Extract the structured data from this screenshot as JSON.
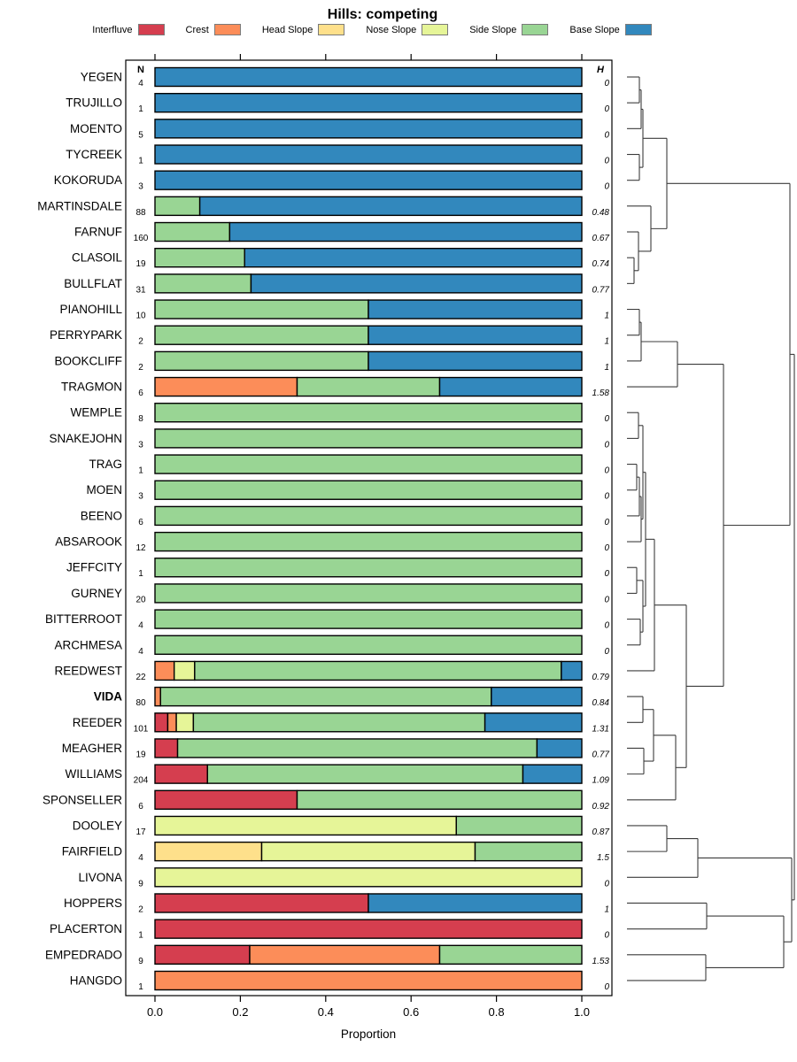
{
  "title": "Hills: competing",
  "legend": {
    "items": [
      {
        "label": "Interfluve",
        "class": "interfluve",
        "color": "#D53E4F"
      },
      {
        "label": "Crest",
        "class": "crest",
        "color": "#FC8D59"
      },
      {
        "label": "Head Slope",
        "class": "head",
        "color": "#FEE08B"
      },
      {
        "label": "Nose Slope",
        "class": "nose",
        "color": "#E6F598"
      },
      {
        "label": "Side Slope",
        "class": "side",
        "color": "#99D594"
      },
      {
        "label": "Base Slope",
        "class": "base",
        "color": "#3288BD"
      }
    ]
  },
  "columns": {
    "n_header": "N",
    "h_header": "H"
  },
  "axis": {
    "label": "Proportion",
    "ticks": [
      {
        "v": 0.0,
        "label": "0.0"
      },
      {
        "v": 0.2,
        "label": "0.2"
      },
      {
        "v": 0.4,
        "label": "0.4"
      },
      {
        "v": 0.6,
        "label": "0.6"
      },
      {
        "v": 0.8,
        "label": "0.8"
      },
      {
        "v": 1.0,
        "label": "1.0"
      }
    ],
    "xlim": [
      0,
      1
    ]
  },
  "chart_data": {
    "type": "bar",
    "orientation": "horizontal-stacked",
    "title": "Hills: competing",
    "xlabel": "Proportion",
    "classes": [
      "interfluve",
      "crest",
      "head",
      "nose",
      "side",
      "base"
    ],
    "colors": {
      "interfluve": "#D53E4F",
      "crest": "#FC8D59",
      "head": "#FEE08B",
      "nose": "#E6F598",
      "side": "#99D594",
      "base": "#3288BD"
    },
    "rows": [
      {
        "name": "YEGEN",
        "n": "4",
        "h": "0",
        "segments": [
          [
            "base",
            1.0
          ]
        ]
      },
      {
        "name": "TRUJILLO",
        "n": "1",
        "h": "0",
        "segments": [
          [
            "base",
            1.0
          ]
        ]
      },
      {
        "name": "MOENTO",
        "n": "5",
        "h": "0",
        "segments": [
          [
            "base",
            1.0
          ]
        ]
      },
      {
        "name": "TYCREEK",
        "n": "1",
        "h": "0",
        "segments": [
          [
            "base",
            1.0
          ]
        ]
      },
      {
        "name": "KOKORUDA",
        "n": "3",
        "h": "0",
        "segments": [
          [
            "base",
            1.0
          ]
        ]
      },
      {
        "name": "MARTINSDALE",
        "n": "88",
        "h": "0.48",
        "segments": [
          [
            "side",
            0.105
          ],
          [
            "base",
            0.895
          ]
        ]
      },
      {
        "name": "FARNUF",
        "n": "160",
        "h": "0.67",
        "segments": [
          [
            "side",
            0.175
          ],
          [
            "base",
            0.825
          ]
        ]
      },
      {
        "name": "CLASOIL",
        "n": "19",
        "h": "0.74",
        "segments": [
          [
            "side",
            0.21
          ],
          [
            "base",
            0.79
          ]
        ]
      },
      {
        "name": "BULLFLAT",
        "n": "31",
        "h": "0.77",
        "segments": [
          [
            "side",
            0.225
          ],
          [
            "base",
            0.775
          ]
        ]
      },
      {
        "name": "PIANOHILL",
        "n": "10",
        "h": "1",
        "segments": [
          [
            "side",
            0.5
          ],
          [
            "base",
            0.5
          ]
        ]
      },
      {
        "name": "PERRYPARK",
        "n": "2",
        "h": "1",
        "segments": [
          [
            "side",
            0.5
          ],
          [
            "base",
            0.5
          ]
        ]
      },
      {
        "name": "BOOKCLIFF",
        "n": "2",
        "h": "1",
        "segments": [
          [
            "side",
            0.5
          ],
          [
            "base",
            0.5
          ]
        ]
      },
      {
        "name": "TRAGMON",
        "n": "6",
        "h": "1.58",
        "segments": [
          [
            "crest",
            0.333
          ],
          [
            "side",
            0.334
          ],
          [
            "base",
            0.333
          ]
        ]
      },
      {
        "name": "WEMPLE",
        "n": "8",
        "h": "0",
        "segments": [
          [
            "side",
            1.0
          ]
        ]
      },
      {
        "name": "SNAKEJOHN",
        "n": "3",
        "h": "0",
        "segments": [
          [
            "side",
            1.0
          ]
        ]
      },
      {
        "name": "TRAG",
        "n": "1",
        "h": "0",
        "segments": [
          [
            "side",
            1.0
          ]
        ]
      },
      {
        "name": "MOEN",
        "n": "3",
        "h": "0",
        "segments": [
          [
            "side",
            1.0
          ]
        ]
      },
      {
        "name": "BEENO",
        "n": "6",
        "h": "0",
        "segments": [
          [
            "side",
            1.0
          ]
        ]
      },
      {
        "name": "ABSAROOK",
        "n": "12",
        "h": "0",
        "segments": [
          [
            "side",
            1.0
          ]
        ]
      },
      {
        "name": "JEFFCITY",
        "n": "1",
        "h": "0",
        "segments": [
          [
            "side",
            1.0
          ]
        ]
      },
      {
        "name": "GURNEY",
        "n": "20",
        "h": "0",
        "segments": [
          [
            "side",
            1.0
          ]
        ]
      },
      {
        "name": "BITTERROOT",
        "n": "4",
        "h": "0",
        "segments": [
          [
            "side",
            1.0
          ]
        ]
      },
      {
        "name": "ARCHMESA",
        "n": "4",
        "h": "0",
        "segments": [
          [
            "side",
            1.0
          ]
        ]
      },
      {
        "name": "REEDWEST",
        "n": "22",
        "h": "0.79",
        "segments": [
          [
            "crest",
            0.045
          ],
          [
            "nose",
            0.048
          ],
          [
            "side",
            0.859
          ],
          [
            "base",
            0.048
          ]
        ]
      },
      {
        "name": "VIDA",
        "n": "80",
        "h": "0.84",
        "bold": true,
        "segments": [
          [
            "crest",
            0.013
          ],
          [
            "side",
            0.775
          ],
          [
            "base",
            0.212
          ]
        ]
      },
      {
        "name": "REEDER",
        "n": "101",
        "h": "1.31",
        "segments": [
          [
            "interfluve",
            0.03
          ],
          [
            "crest",
            0.02
          ],
          [
            "nose",
            0.04
          ],
          [
            "side",
            0.683
          ],
          [
            "base",
            0.227
          ]
        ]
      },
      {
        "name": "MEAGHER",
        "n": "19",
        "h": "0.77",
        "segments": [
          [
            "interfluve",
            0.053
          ],
          [
            "side",
            0.842
          ],
          [
            "base",
            0.105
          ]
        ]
      },
      {
        "name": "WILLIAMS",
        "n": "204",
        "h": "1.09",
        "segments": [
          [
            "interfluve",
            0.123
          ],
          [
            "side",
            0.739
          ],
          [
            "base",
            0.138
          ]
        ]
      },
      {
        "name": "SPONSELLER",
        "n": "6",
        "h": "0.92",
        "segments": [
          [
            "interfluve",
            0.333
          ],
          [
            "side",
            0.667
          ]
        ]
      },
      {
        "name": "DOOLEY",
        "n": "17",
        "h": "0.87",
        "segments": [
          [
            "nose",
            0.706
          ],
          [
            "side",
            0.294
          ]
        ]
      },
      {
        "name": "FAIRFIELD",
        "n": "4",
        "h": "1.5",
        "segments": [
          [
            "head",
            0.25
          ],
          [
            "nose",
            0.5
          ],
          [
            "side",
            0.25
          ]
        ]
      },
      {
        "name": "LIVONA",
        "n": "9",
        "h": "0",
        "segments": [
          [
            "nose",
            1.0
          ]
        ]
      },
      {
        "name": "HOPPERS",
        "n": "2",
        "h": "1",
        "segments": [
          [
            "interfluve",
            0.5
          ],
          [
            "base",
            0.5
          ]
        ]
      },
      {
        "name": "PLACERTON",
        "n": "1",
        "h": "0",
        "segments": [
          [
            "interfluve",
            1.0
          ]
        ]
      },
      {
        "name": "EMPEDRADO",
        "n": "9",
        "h": "1.53",
        "segments": [
          [
            "interfluve",
            0.222
          ],
          [
            "crest",
            0.445
          ],
          [
            "side",
            0.333
          ]
        ]
      },
      {
        "name": "HANGDO",
        "n": "1",
        "h": "0",
        "segments": [
          [
            "crest",
            1.0
          ]
        ]
      }
    ],
    "dendrogram": {
      "leaf_x": 708,
      "merges": [
        [
          "L0",
          "L1",
          722
        ],
        [
          "M0",
          "L2",
          724
        ],
        [
          "L3",
          "L4",
          722
        ],
        [
          "M1",
          "M2",
          726
        ],
        [
          "L7",
          "L8",
          716
        ],
        [
          "L6",
          "M4",
          721
        ],
        [
          "L5",
          "M5",
          735
        ],
        [
          "M3",
          "M6",
          753
        ],
        [
          "L9",
          "L10",
          722
        ],
        [
          "M8",
          "L11",
          724
        ],
        [
          "M9",
          "L12",
          765
        ],
        [
          "L13",
          "L14",
          721
        ],
        [
          "L15",
          "L16",
          719
        ],
        [
          "M12",
          "L17",
          722
        ],
        [
          "M13",
          "L18",
          724
        ],
        [
          "L19",
          "L20",
          719
        ],
        [
          "L21",
          "L22",
          723
        ],
        [
          "M15",
          "M16",
          726
        ],
        [
          "M11",
          "M14",
          726
        ],
        [
          "M18",
          "M17",
          729
        ],
        [
          "M19",
          "L23",
          739
        ],
        [
          "L24",
          "L25",
          726
        ],
        [
          "L26",
          "L27",
          727
        ],
        [
          "M21",
          "M22",
          738
        ],
        [
          "M23",
          "L28",
          763
        ],
        [
          "M20",
          "M24",
          775
        ],
        [
          "M10",
          "M25",
          817
        ],
        [
          "M7",
          "M26",
          892
        ],
        [
          "L29",
          "L30",
          753
        ],
        [
          "M28",
          "L31",
          788
        ],
        [
          "L32",
          "L33",
          798
        ],
        [
          "L34",
          "L35",
          797
        ],
        [
          "M30",
          "M31",
          885
        ],
        [
          "M29",
          "M32",
          894
        ],
        [
          "M27",
          "M33",
          897
        ]
      ]
    }
  }
}
